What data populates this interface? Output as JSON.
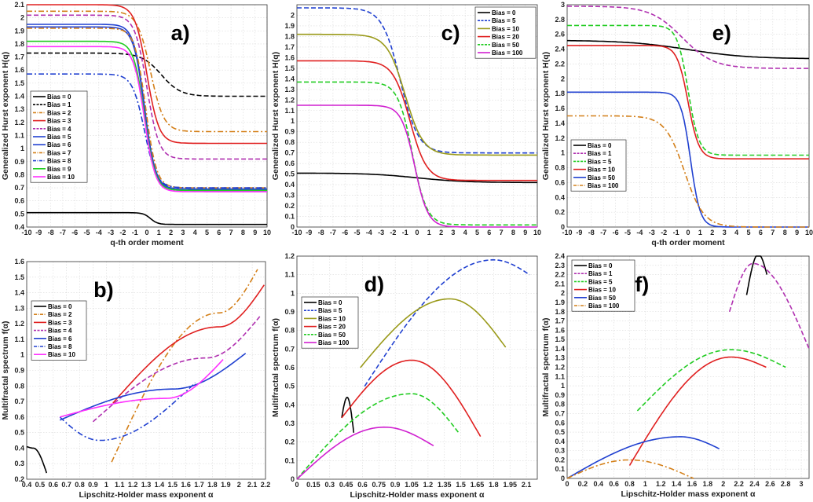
{
  "chart_data": [
    {
      "id": "a",
      "type": "line",
      "panel_label": "a)",
      "label_pos": "top-center",
      "xlabel": "q-th order moment",
      "ylabel": "Generalized Hurst exponent H(q)",
      "xlim": [
        -10,
        10
      ],
      "ylim": [
        0.4,
        2.1
      ],
      "xticks": [
        -10,
        -9,
        -8,
        -7,
        -6,
        -5,
        -4,
        -3,
        -2,
        -1,
        0,
        1,
        2,
        3,
        4,
        5,
        6,
        7,
        8,
        9,
        10
      ],
      "xtick_labels": [
        "-10",
        "-9",
        "-8",
        "-7",
        "-6",
        "-5",
        "-4",
        "-3",
        "-2",
        "-1",
        "0",
        "1",
        "2",
        "3",
        "4",
        "5",
        "6",
        "7",
        "8",
        "9",
        "10"
      ],
      "yticks": [
        0.4,
        0.5,
        0.6,
        0.7,
        0.8,
        0.9,
        1,
        1.1,
        1.2,
        1.3,
        1.4,
        1.5,
        1.6,
        1.7,
        1.8,
        1.9,
        2,
        2.1
      ],
      "ytick_labels": [
        "0.4",
        "0.5",
        "0.6",
        "0.7",
        "0.8",
        "0.9",
        "1",
        "1.1",
        "1.2",
        "1.3",
        "1.4",
        "1.5",
        "1.6",
        "1.7",
        "1.8",
        "1.9",
        "2",
        "2.1"
      ],
      "legend_position": "bottom-left",
      "series": [
        {
          "name": "Bias = 0",
          "color": "#000000",
          "dash": "solid",
          "shape": "sigmoid",
          "params": [
            0.51,
            0.42,
            0.3,
            0.3
          ]
        },
        {
          "name": "Bias = 1",
          "color": "#000000",
          "dash": "dashed",
          "shape": "sigmoid",
          "params": [
            1.73,
            1.4,
            1.2,
            0.8
          ]
        },
        {
          "name": "Bias = 2",
          "color": "#d4801a",
          "dash": "dashdot",
          "shape": "sigmoid",
          "params": [
            2.05,
            1.13,
            0.3,
            0.55
          ]
        },
        {
          "name": "Bias = 3",
          "color": "#e02020",
          "dash": "solid",
          "shape": "sigmoid",
          "params": [
            2.1,
            1.04,
            0.0,
            0.5
          ]
        },
        {
          "name": "Bias = 4",
          "color": "#b030b0",
          "dash": "dashed",
          "shape": "sigmoid",
          "params": [
            2.02,
            0.92,
            0.0,
            0.5
          ]
        },
        {
          "name": "Bias = 5",
          "color": "#2040d0",
          "dash": "solid",
          "shape": "sigmoid",
          "params": [
            1.95,
            0.69,
            -0.2,
            0.45
          ]
        },
        {
          "name": "Bias = 6",
          "color": "#2040d0",
          "dash": "solid",
          "shape": "sigmoid",
          "params": [
            1.93,
            0.68,
            -0.2,
            0.45
          ]
        },
        {
          "name": "Bias = 7",
          "color": "#d4801a",
          "dash": "dashdot",
          "shape": "sigmoid",
          "params": [
            1.92,
            0.7,
            -0.1,
            0.45
          ]
        },
        {
          "name": "Bias = 8",
          "color": "#2040d0",
          "dash": "dashdot",
          "shape": "sigmoid",
          "params": [
            1.57,
            0.7,
            -0.2,
            0.5
          ]
        },
        {
          "name": "Bias = 9",
          "color": "#22cc22",
          "dash": "solid",
          "shape": "sigmoid",
          "params": [
            1.82,
            0.68,
            -0.2,
            0.45
          ]
        },
        {
          "name": "Bias = 10",
          "color": "#ff30ff",
          "dash": "solid",
          "shape": "sigmoid",
          "params": [
            1.78,
            0.67,
            -0.2,
            0.45
          ]
        }
      ]
    },
    {
      "id": "b",
      "type": "line",
      "panel_label": "b)",
      "label_pos": "top-left",
      "xlabel": "Lipschitz-Holder mass exponent α",
      "ylabel": "Multifractal spectrum f(α)",
      "xlim": [
        0.4,
        2.2
      ],
      "ylim": [
        0.2,
        1.6
      ],
      "xticks": [
        0.4,
        0.5,
        0.6,
        0.7,
        0.8,
        0.9,
        1,
        1.1,
        1.2,
        1.3,
        1.4,
        1.5,
        1.6,
        1.7,
        1.8,
        1.9,
        2,
        2.1,
        2.2
      ],
      "xtick_labels": [
        "0.4",
        "0.5",
        "0.6",
        "0.7",
        "0.8",
        "0.9",
        "1",
        "1.1",
        "1.2",
        "1.3",
        "1.4",
        "1.5",
        "1.6",
        "1.7",
        "1.8",
        "1.9",
        "2",
        "2.1",
        "2.2"
      ],
      "yticks": [
        0.2,
        0.3,
        0.4,
        0.5,
        0.6,
        0.7,
        0.8,
        0.9,
        1,
        1.1,
        1.2,
        1.3,
        1.4,
        1.5,
        1.6
      ],
      "ytick_labels": [
        "0.2",
        "0.3",
        "0.4",
        "0.5",
        "0.6",
        "0.7",
        "0.8",
        "0.9",
        "1",
        "1.1",
        "1.2",
        "1.3",
        "1.4",
        "1.5",
        "1.6"
      ],
      "legend_position": "left-middle",
      "series": [
        {
          "name": "Bias = 0",
          "color": "#000000",
          "dash": "solid",
          "shape": "arc",
          "params": [
            0.4,
            0.55,
            0.45,
            0.41,
            0.24,
            0.4
          ]
        },
        {
          "name": "Bias = 2",
          "color": "#d4801a",
          "dash": "dashdot",
          "shape": "arc",
          "params": [
            1.04,
            2.14,
            1.85,
            0.31,
            1.55,
            1.27
          ]
        },
        {
          "name": "Bias = 3",
          "color": "#e02020",
          "dash": "solid",
          "shape": "arc",
          "params": [
            1.05,
            2.19,
            1.85,
            0.69,
            1.45,
            1.18
          ]
        },
        {
          "name": "Bias = 4",
          "color": "#b030b0",
          "dash": "dashed",
          "shape": "arc",
          "params": [
            0.9,
            2.16,
            1.75,
            0.57,
            1.25,
            0.98
          ]
        },
        {
          "name": "Bias = 6",
          "color": "#2040d0",
          "dash": "solid",
          "shape": "arc",
          "params": [
            0.65,
            2.05,
            1.5,
            0.58,
            1.01,
            0.78
          ]
        },
        {
          "name": "Bias = 8",
          "color": "#2040d0",
          "dash": "dashdot",
          "shape": "arc",
          "params": [
            0.65,
            1.67,
            0.95,
            0.6,
            0.82,
            0.45
          ]
        },
        {
          "name": "Bias = 10",
          "color": "#ff30ff",
          "dash": "solid",
          "shape": "arc",
          "params": [
            0.65,
            1.88,
            1.45,
            0.6,
            0.97,
            0.72
          ]
        }
      ]
    },
    {
      "id": "c",
      "type": "line",
      "panel_label": "c)",
      "label_pos": "top-center",
      "xlabel": "",
      "ylabel": "Generalized Hurst exponent H(q)",
      "xlim": [
        -10,
        10
      ],
      "ylim": [
        0,
        2.1
      ],
      "xticks": [
        -10,
        -9,
        -8,
        -7,
        -6,
        -5,
        -4,
        -3,
        -2,
        -1,
        0,
        1,
        2,
        3,
        4,
        5,
        6,
        7,
        8,
        9,
        10
      ],
      "xtick_labels": [
        "-10",
        "-9",
        "-8",
        "-7",
        "-6",
        "-5",
        "-4",
        "-3",
        "-2",
        "-1",
        "0",
        "1",
        "2",
        "3",
        "4",
        "5",
        "6",
        "7",
        "8",
        "9",
        "10"
      ],
      "yticks": [
        0,
        0.1,
        0.2,
        0.3,
        0.4,
        0.5,
        0.6,
        0.7,
        0.8,
        0.9,
        1,
        1.1,
        1.2,
        1.3,
        1.4,
        1.5,
        1.6,
        1.7,
        1.8,
        1.9,
        2
      ],
      "ytick_labels": [
        "0",
        "0.1",
        "0.2",
        "0.3",
        "0.4",
        "0.5",
        "0.6",
        "0.7",
        "0.8",
        "0.9",
        "1",
        "1.1",
        "1.2",
        "1.3",
        "1.4",
        "1.5",
        "1.6",
        "1.7",
        "1.8",
        "1.9",
        "2"
      ],
      "legend_position": "top-right",
      "series": [
        {
          "name": "Bias = 0",
          "color": "#000000",
          "dash": "solid",
          "shape": "sigmoid",
          "params": [
            0.51,
            0.42,
            0.0,
            2.0
          ]
        },
        {
          "name": "Bias = 5",
          "color": "#2040d0",
          "dash": "dashed",
          "shape": "sigmoid",
          "params": [
            2.07,
            0.7,
            -1.4,
            0.75
          ]
        },
        {
          "name": "Bias = 10",
          "color": "#9a9a1a",
          "dash": "solid",
          "shape": "sigmoid",
          "params": [
            1.82,
            0.68,
            -1.0,
            0.75
          ]
        },
        {
          "name": "Bias = 20",
          "color": "#e02020",
          "dash": "solid",
          "shape": "sigmoid",
          "params": [
            1.57,
            0.44,
            -0.6,
            0.7
          ]
        },
        {
          "name": "Bias = 50",
          "color": "#22cc22",
          "dash": "dashed",
          "shape": "sigmoid",
          "params": [
            1.37,
            0.02,
            -0.4,
            0.6
          ]
        },
        {
          "name": "Bias = 100",
          "color": "#d020d0",
          "dash": "solid",
          "shape": "sigmoid",
          "params": [
            1.15,
            0.0,
            -0.2,
            0.55
          ]
        }
      ]
    },
    {
      "id": "d",
      "type": "line",
      "panel_label": "d)",
      "label_pos": "top-left",
      "xlabel": "Lipschitz-Holder mass exponent α",
      "ylabel": "Multifractal spectrum f(α)",
      "xlim": [
        0,
        2.2
      ],
      "ylim": [
        0,
        1.2
      ],
      "xticks": [
        0,
        0.15,
        0.3,
        0.45,
        0.6,
        0.75,
        0.9,
        1.05,
        1.2,
        1.35,
        1.5,
        1.65,
        1.8,
        1.95,
        2.1
      ],
      "xtick_labels": [
        "0",
        "0.15",
        "0.3",
        "0.45",
        "0.6",
        "0.75",
        "0.9",
        "1.05",
        "1.2",
        "1.35",
        "1.5",
        "1.65",
        "1.8",
        "1.95",
        "2.1"
      ],
      "yticks": [
        0,
        0.1,
        0.2,
        0.3,
        0.4,
        0.5,
        0.6,
        0.7,
        0.8,
        0.9,
        1,
        1.1,
        1.2
      ],
      "ytick_labels": [
        "0",
        "0.1",
        "0.2",
        "0.3",
        "0.4",
        "0.5",
        "0.6",
        "0.7",
        "0.8",
        "0.9",
        "1",
        "1.1",
        "1.2"
      ],
      "legend_position": "top-left",
      "series": [
        {
          "name": "Bias = 0",
          "color": "#000000",
          "dash": "solid",
          "shape": "arc",
          "params": [
            0.41,
            0.52,
            0.46,
            0.33,
            0.25,
            0.44
          ]
        },
        {
          "name": "Bias = 5",
          "color": "#2040d0",
          "dash": "dashed",
          "shape": "arc",
          "params": [
            0.62,
            2.13,
            1.8,
            0.5,
            1.1,
            1.18
          ]
        },
        {
          "name": "Bias = 10",
          "color": "#9a9a1a",
          "dash": "solid",
          "shape": "arc",
          "params": [
            0.58,
            1.91,
            1.4,
            0.6,
            0.71,
            0.97
          ]
        },
        {
          "name": "Bias = 20",
          "color": "#e02020",
          "dash": "solid",
          "shape": "arc",
          "params": [
            0.41,
            1.68,
            1.05,
            0.33,
            0.23,
            0.64
          ]
        },
        {
          "name": "Bias = 50",
          "color": "#22cc22",
          "dash": "dashed",
          "shape": "arc",
          "params": [
            0.0,
            1.48,
            1.05,
            0.0,
            0.25,
            0.46
          ]
        },
        {
          "name": "Bias = 100",
          "color": "#d020d0",
          "dash": "solid",
          "shape": "arc",
          "params": [
            0.0,
            1.25,
            0.8,
            0.0,
            0.18,
            0.28
          ]
        }
      ]
    },
    {
      "id": "e",
      "type": "line",
      "panel_label": "e)",
      "label_pos": "top-center",
      "xlabel": "q-th order moment",
      "ylabel": "Generalized Hurst exponent H(q)",
      "xlim": [
        -10,
        10
      ],
      "ylim": [
        0,
        3
      ],
      "xticks": [
        -10,
        -9,
        -8,
        -7,
        -6,
        -5,
        -4,
        -3,
        -2,
        -1,
        0,
        1,
        2,
        3,
        4,
        5,
        6,
        7,
        8,
        9,
        10
      ],
      "xtick_labels": [
        "-10",
        "-9",
        "-8",
        "-7",
        "-6",
        "-5",
        "-4",
        "-3",
        "-2",
        "-1",
        "0",
        "1",
        "2",
        "3",
        "4",
        "5",
        "6",
        "7",
        "8",
        "9",
        "10"
      ],
      "yticks": [
        0,
        0.2,
        0.4,
        0.6,
        0.8,
        1,
        1.2,
        1.4,
        1.6,
        1.8,
        2,
        2.2,
        2.4,
        2.6,
        2.8,
        3
      ],
      "ytick_labels": [
        "0",
        "0.2",
        "0.4",
        "0.6",
        "0.8",
        "1",
        "1.2",
        "1.4",
        "1.6",
        "1.8",
        "2",
        "2.2",
        "2.4",
        "2.6",
        "2.8",
        "3"
      ],
      "legend_position": "bottom-left",
      "series": [
        {
          "name": "Bias = 0",
          "color": "#000000",
          "dash": "solid",
          "shape": "sigmoid",
          "params": [
            2.52,
            2.27,
            0.0,
            2.5
          ]
        },
        {
          "name": "Bias = 1",
          "color": "#b030b0",
          "dash": "dashed",
          "shape": "sigmoid",
          "params": [
            2.98,
            2.14,
            -0.5,
            1.3
          ]
        },
        {
          "name": "Bias = 5",
          "color": "#22cc22",
          "dash": "dashed",
          "shape": "sigmoid",
          "params": [
            2.72,
            0.97,
            0.0,
            0.45
          ]
        },
        {
          "name": "Bias = 10",
          "color": "#e02020",
          "dash": "solid",
          "shape": "sigmoid",
          "params": [
            2.45,
            0.92,
            0.0,
            0.45
          ]
        },
        {
          "name": "Bias = 50",
          "color": "#2040d0",
          "dash": "solid",
          "shape": "sigmoid",
          "params": [
            1.82,
            0.0,
            0.2,
            0.4
          ]
        },
        {
          "name": "Bias = 100",
          "color": "#d4801a",
          "dash": "dashdot",
          "shape": "sigmoid",
          "params": [
            1.5,
            0.0,
            -0.3,
            0.8
          ]
        }
      ]
    },
    {
      "id": "f",
      "type": "line",
      "panel_label": "f)",
      "label_pos": "top-left",
      "xlabel": "Lipschitz-Holder mass exponent α",
      "ylabel": "Multifractal spectrum f(α)",
      "xlim": [
        0,
        3.1
      ],
      "ylim": [
        0,
        2.4
      ],
      "xticks": [
        0,
        0.2,
        0.4,
        0.6,
        0.8,
        1,
        1.2,
        1.4,
        1.6,
        1.8,
        2,
        2.2,
        2.4,
        2.6,
        2.8,
        3
      ],
      "xtick_labels": [
        "0",
        "0.2",
        "0.4",
        "0.6",
        "0.8",
        "1",
        "1.2",
        "1.4",
        "1.6",
        "1.8",
        "2",
        "2.2",
        "2.4",
        "2.6",
        "2.8",
        "3"
      ],
      "yticks": [
        0,
        0.1,
        0.2,
        0.3,
        0.4,
        0.5,
        0.6,
        0.7,
        0.8,
        0.9,
        1,
        1.1,
        1.2,
        1.3,
        1.4,
        1.5,
        1.6,
        1.7,
        1.8,
        1.9,
        2,
        2.1,
        2.2,
        2.3,
        2.4
      ],
      "ytick_labels": [
        "0",
        "0.1",
        "0.2",
        "0.3",
        "0.4",
        "0.5",
        "0.6",
        "0.7",
        "0.8",
        "0.9",
        "1",
        "1.1",
        "1.2",
        "1.3",
        "1.4",
        "1.5",
        "1.6",
        "1.7",
        "1.8",
        "1.9",
        "2",
        "2.1",
        "2.2",
        "2.3",
        "2.4"
      ],
      "legend_position": "top-left",
      "series": [
        {
          "name": "Bias = 0",
          "color": "#000000",
          "dash": "solid",
          "shape": "arc",
          "params": [
            2.3,
            2.56,
            2.45,
            1.98,
            2.2,
            2.42
          ]
        },
        {
          "name": "Bias = 1",
          "color": "#b030b0",
          "dash": "dashed",
          "shape": "arc",
          "params": [
            2.08,
            3.1,
            2.38,
            1.8,
            1.4,
            2.32
          ]
        },
        {
          "name": "Bias = 5",
          "color": "#22cc22",
          "dash": "dashed",
          "shape": "arc",
          "params": [
            0.9,
            2.8,
            2.1,
            0.73,
            1.2,
            1.39
          ]
        },
        {
          "name": "Bias = 10",
          "color": "#e02020",
          "dash": "solid",
          "shape": "arc",
          "params": [
            0.8,
            2.55,
            2.1,
            0.14,
            1.2,
            1.31
          ]
        },
        {
          "name": "Bias = 50",
          "color": "#2040d0",
          "dash": "solid",
          "shape": "arc",
          "params": [
            0.0,
            1.95,
            1.45,
            0.0,
            0.32,
            0.45
          ]
        },
        {
          "name": "Bias = 100",
          "color": "#d4801a",
          "dash": "dashdot",
          "shape": "arc",
          "params": [
            0.0,
            1.62,
            0.8,
            0.0,
            0.0,
            0.2
          ]
        }
      ]
    }
  ]
}
